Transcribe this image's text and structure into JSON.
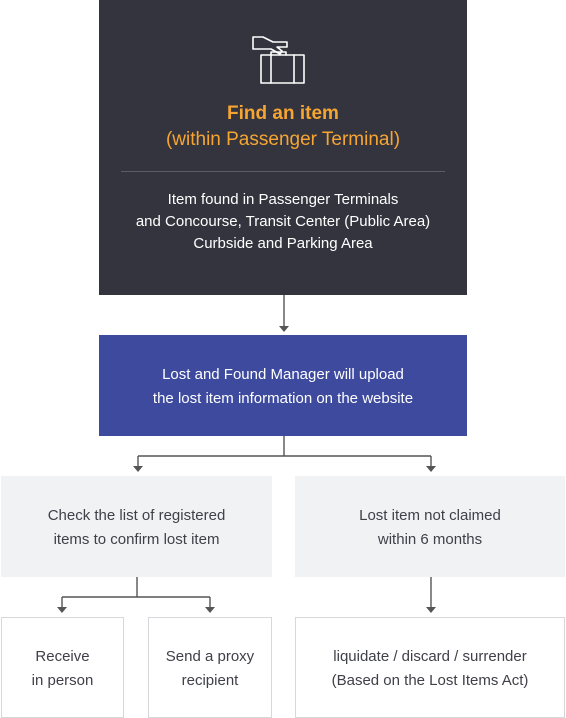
{
  "top": {
    "icon": "luggage-icon",
    "title_line1": "Find an item",
    "title_line2": "(within Passenger Terminal)",
    "desc_lines": [
      "Item found in Passenger Terminals",
      "and Concourse, Transit Center (Public Area)",
      "Curbside and Parking Area"
    ]
  },
  "middle": {
    "lines": [
      "Lost and Found Manager will upload",
      "the lost item information on the website"
    ]
  },
  "left_branch": {
    "lines": [
      "Check the list of registered",
      "items to confirm lost item"
    ]
  },
  "right_branch": {
    "lines": [
      "Lost item not claimed",
      "within 6 months"
    ]
  },
  "receive": {
    "lines": [
      "Receive",
      "in person"
    ]
  },
  "proxy": {
    "lines": [
      "Send a proxy",
      "recipient"
    ]
  },
  "dispose": {
    "lines": [
      "liquidate / discard / surrender",
      "(Based on the Lost Items Act)"
    ]
  },
  "colors": {
    "top_bg": "#34343f",
    "accent_orange": "#f6a531",
    "mid_bg": "#3d4a9e",
    "grey_bg": "#f1f2f4",
    "arrow": "#555555"
  }
}
